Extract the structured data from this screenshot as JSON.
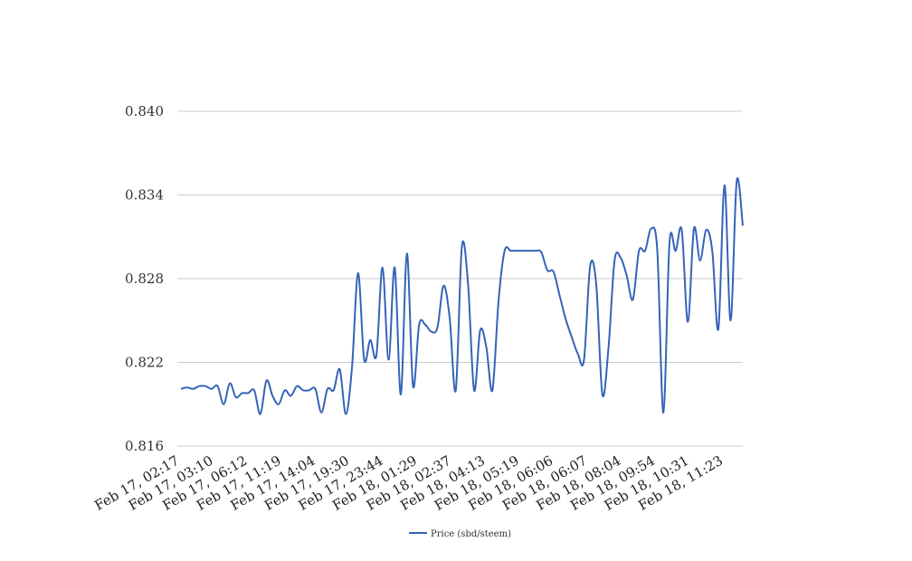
{
  "chart_data": {
    "type": "line",
    "title": "",
    "xlabel": "",
    "ylabel": "",
    "ylim": [
      0.816,
      0.84
    ],
    "y_ticks": [
      "0.840",
      "0.834",
      "0.828",
      "0.822",
      "0.816"
    ],
    "x_tick_labels": [
      "Feb 17, 02:17",
      "Feb 17, 03:10",
      "Feb 17, 06:12",
      "Feb 17, 11:19",
      "Feb 17, 14:04",
      "Feb 17, 19:30",
      "Feb 17, 23:44",
      "Feb 18, 01:29",
      "Feb 18, 02:37",
      "Feb 18, 04:13",
      "Feb 18, 05:19",
      "Feb 18, 06:06",
      "Feb 18, 06:07",
      "Feb 18, 08:04",
      "Feb 18, 09:54",
      "Feb 18, 10:31",
      "Feb 18, 11:23"
    ],
    "grid": true,
    "legend_position": "bottom",
    "series": [
      {
        "name": "Price (sbd/steem)",
        "color": "#3563b8",
        "values": [
          0.8201,
          0.8202,
          0.8201,
          0.8203,
          0.8203,
          0.8201,
          0.8203,
          0.819,
          0.8205,
          0.8195,
          0.8198,
          0.8198,
          0.82,
          0.8183,
          0.8207,
          0.8196,
          0.819,
          0.82,
          0.8196,
          0.8203,
          0.82,
          0.82,
          0.8201,
          0.8184,
          0.8201,
          0.82,
          0.8215,
          0.8183,
          0.8216,
          0.8284,
          0.8222,
          0.8236,
          0.8225,
          0.8288,
          0.8222,
          0.8288,
          0.8197,
          0.8298,
          0.8203,
          0.8247,
          0.8247,
          0.8242,
          0.8245,
          0.8275,
          0.8252,
          0.82,
          0.8303,
          0.8277,
          0.82,
          0.8243,
          0.8231,
          0.82,
          0.8264,
          0.83,
          0.83,
          0.83,
          0.83,
          0.83,
          0.83,
          0.8299,
          0.8286,
          0.8285,
          0.8268,
          0.8251,
          0.8238,
          0.8226,
          0.8222,
          0.8289,
          0.8276,
          0.8197,
          0.823,
          0.8293,
          0.8295,
          0.8282,
          0.8265,
          0.83,
          0.83,
          0.8316,
          0.83,
          0.8184,
          0.8306,
          0.83,
          0.8315,
          0.8249,
          0.8316,
          0.8293,
          0.8315,
          0.83,
          0.8244,
          0.8347,
          0.825,
          0.835,
          0.8318
        ]
      }
    ]
  }
}
